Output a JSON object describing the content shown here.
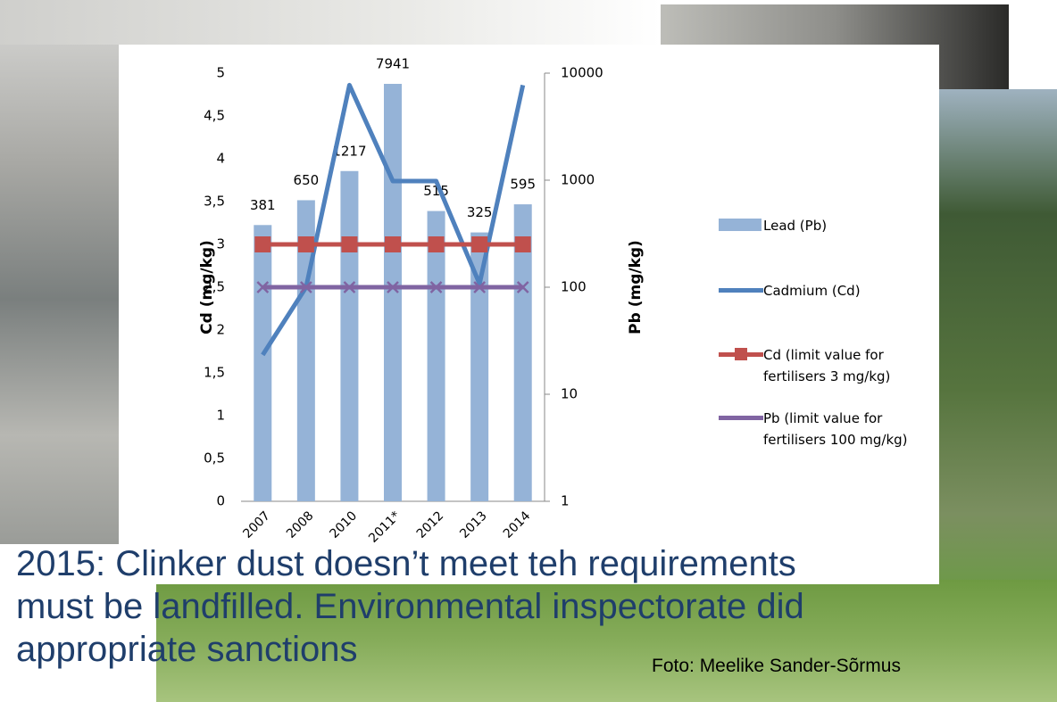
{
  "chart_data": {
    "type": "combo",
    "categories": [
      "2007",
      "2008",
      "2010",
      "2011*",
      "2012",
      "2013",
      "2014"
    ],
    "ylabel": "Cd (mg/kg)",
    "y2label": "Pb (mg/kg)",
    "ylim": [
      0,
      5
    ],
    "yticks": [
      0,
      {
        "value": 0.5,
        "label": "0,5"
      },
      1,
      {
        "value": 1.5,
        "label": "1,5"
      },
      2,
      {
        "value": 2.5,
        "label": "2,5"
      },
      3,
      {
        "value": 3.5,
        "label": "3,5"
      },
      4,
      {
        "value": 4.5,
        "label": "4,5"
      },
      5
    ],
    "y2lim": [
      1,
      10000
    ],
    "y2ticks": [
      1,
      10,
      100,
      1000,
      10000
    ],
    "y2scale": "log",
    "legend": "right",
    "series": [
      {
        "name": "Lead (Pb)",
        "type": "bar",
        "axis": "y2",
        "color": "#95b3d7",
        "values": [
          381,
          650,
          1217,
          7941,
          515,
          325,
          595
        ]
      },
      {
        "name": "Cadmium (Cd)",
        "type": "line",
        "color": "#4f81bd",
        "values": [
          1.71,
          2.5,
          4.86,
          3.74,
          3.74,
          2.54,
          4.86
        ]
      },
      {
        "name": "Cd (limit value for fertilisers 3 mg/kg)",
        "type": "line",
        "marker": "square",
        "color": "#c0504d",
        "values": [
          3,
          3,
          3,
          3,
          3,
          3,
          3
        ]
      },
      {
        "name": "Pb (limit value for fertilisers 100 mg/kg)",
        "type": "line",
        "marker": "x",
        "axis": "y2",
        "color": "#8064a2",
        "values": [
          100,
          100,
          100,
          100,
          100,
          100,
          100
        ]
      }
    ]
  },
  "slide": {
    "caption": [
      "2015: Clinker dust doesn’t meet teh requirements",
      "must be landfilled. Environmental inspectorate did",
      "appropriate sanctions"
    ],
    "credit": "Foto: Meelike Sander-Sõrmus"
  }
}
